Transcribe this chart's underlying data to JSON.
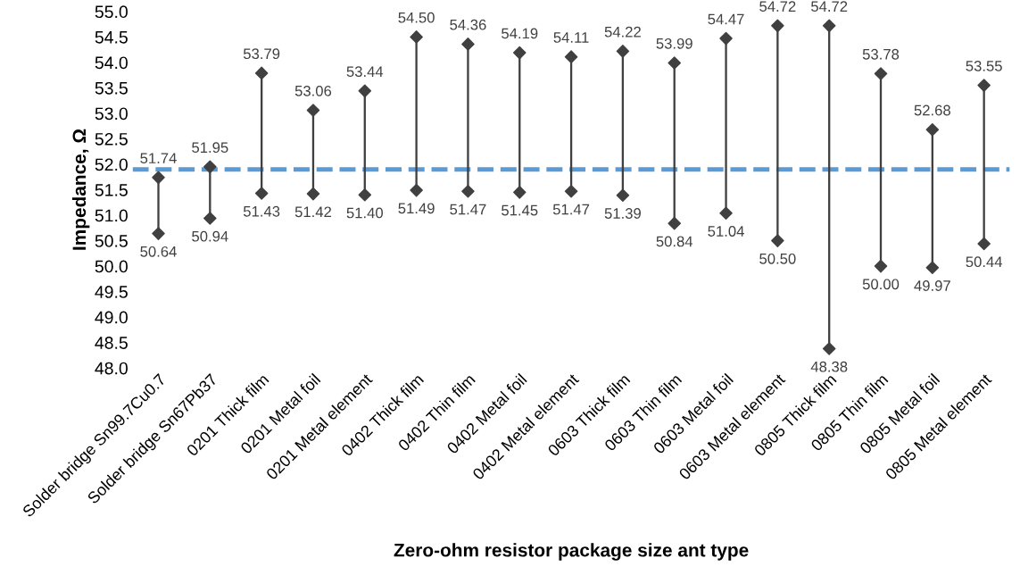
{
  "chart_data": {
    "type": "scatter",
    "xlabel": "Zero-ohm resistor package size ant type",
    "ylabel": "Impedance, Ω",
    "categories": [
      "Solder bridge Sn99.7Cu0.7",
      "Solder bridge Sn67Pb37",
      "0201 Thick film",
      "0201 Metal foil",
      "0201 Metal element",
      "0402 Thick film",
      "0402 Thin film",
      "0402 Metal foil",
      "0402 Metal element",
      "0603 Thick film",
      "0603 Thin film",
      "0603 Metal foil",
      "0603 Metal element",
      "0805 Thick film",
      "0805 Thin film",
      "0805 Metal foil",
      "0805 Metal element"
    ],
    "series": [
      {
        "type": "bar",
        "color": "#404040",
        "base": [
          50.64,
          50.94,
          51.43,
          51.42,
          51.4,
          51.49,
          51.47,
          51.45,
          51.47,
          51.39,
          50.84,
          51.04,
          50.5,
          48.38,
          50.0,
          49.97,
          50.44
        ],
        "values": [
          1.1,
          1.01,
          2.36,
          1.64,
          2.04,
          3.01,
          2.89,
          2.74,
          2.64,
          2.83,
          3.15,
          3.43,
          4.22,
          6.34,
          3.78,
          2.71,
          3.11
        ]
      },
      {
        "color": "#404040",
        "values": [
          51.74,
          51.95,
          53.79,
          53.06,
          53.44,
          54.5,
          54.36,
          54.19,
          54.11,
          54.22,
          53.99,
          54.47,
          54.72,
          54.72,
          53.78,
          52.68,
          53.55
        ],
        "value_labels": [
          "51.74",
          "51.95",
          "53.79",
          "53.06",
          "53.44",
          "54.50",
          "54.36",
          "54.19",
          "54.11",
          "54.22",
          "53.99",
          "54.47",
          "54.72",
          "54.72",
          "53.78",
          "52.68",
          "53.55"
        ]
      },
      {
        "color": "#404040",
        "values": [
          50.64,
          50.94,
          51.43,
          51.42,
          51.4,
          51.49,
          51.47,
          51.45,
          51.47,
          51.39,
          50.84,
          51.04,
          50.5,
          48.38,
          50.0,
          49.97,
          50.44
        ],
        "value_labels": [
          "50.64",
          "50.94",
          "51.43",
          "51.42",
          "51.40",
          "51.49",
          "51.47",
          "51.45",
          "51.47",
          "51.39",
          "50.84",
          "51.04",
          "50.50",
          "48.38",
          "50.00",
          "49.97",
          "50.44"
        ]
      }
    ],
    "ylim": [
      48,
      55
    ],
    "yticks": [
      {
        "value": 48,
        "label": "48.0"
      },
      {
        "value": 48.5,
        "label": "48.5"
      },
      {
        "value": 49,
        "label": "49.0"
      },
      {
        "value": 49.5,
        "label": "49.5"
      },
      {
        "value": 50,
        "label": "50.0"
      },
      {
        "value": 50.5,
        "label": "50.5"
      },
      {
        "value": 51,
        "label": "51.0"
      },
      {
        "value": 51.5,
        "label": "51.5"
      },
      {
        "value": 52,
        "label": "52.0"
      },
      {
        "value": 52.5,
        "label": "52.5"
      },
      {
        "value": 53,
        "label": "53.0"
      },
      {
        "value": 53.5,
        "label": "53.5"
      },
      {
        "value": 54,
        "label": "54.0"
      },
      {
        "value": 54.5,
        "label": "54.5"
      },
      {
        "value": 55,
        "label": "55.0"
      }
    ],
    "ref_lines": [
      {
        "axis": "y",
        "value": 51.9,
        "color": "#5b9bd5",
        "line_style": "dashed"
      }
    ],
    "marker": "diamond",
    "grid": false,
    "legend": false
  }
}
